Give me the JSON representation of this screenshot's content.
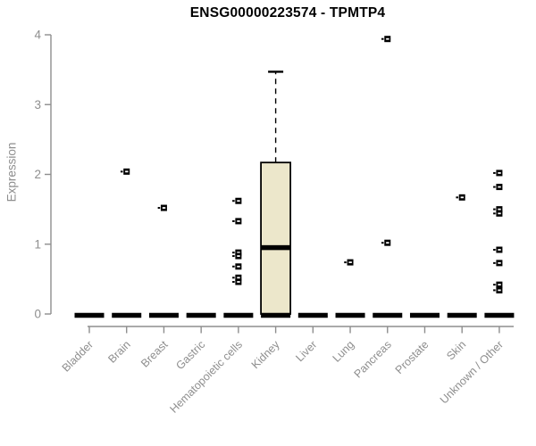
{
  "chart_data": {
    "type": "boxplot",
    "title": "ENSG00000223574 - TPMTP4",
    "ylabel": "Expression",
    "xlabel": "",
    "ylim": [
      0,
      4
    ],
    "yticks": [
      0,
      1,
      2,
      3,
      4
    ],
    "grid": false,
    "legend": "none",
    "series": [
      {
        "category": "Bladder",
        "median": 0,
        "q1": 0,
        "q3": 0,
        "whisker_low": 0,
        "whisker_high": 0,
        "outliers": []
      },
      {
        "category": "Brain",
        "median": 0,
        "q1": 0,
        "q3": 0,
        "whisker_low": 0,
        "whisker_high": 0,
        "outliers": [
          2.04
        ]
      },
      {
        "category": "Breast",
        "median": 0,
        "q1": 0,
        "q3": 0,
        "whisker_low": 0,
        "whisker_high": 0,
        "outliers": [
          1.52
        ]
      },
      {
        "category": "Gastric",
        "median": 0,
        "q1": 0,
        "q3": 0,
        "whisker_low": 0,
        "whisker_high": 0,
        "outliers": []
      },
      {
        "category": "Hematopoietic cells",
        "median": 0,
        "q1": 0,
        "q3": 0,
        "whisker_low": 0,
        "whisker_high": 0,
        "outliers": [
          1.62,
          1.33,
          0.88,
          0.83,
          0.68,
          0.52,
          0.46
        ]
      },
      {
        "category": "Kidney",
        "median": 0.97,
        "q1": 0,
        "q3": 2.17,
        "whisker_low": 0,
        "whisker_high": 3.47,
        "outliers": []
      },
      {
        "category": "Liver",
        "median": 0,
        "q1": 0,
        "q3": 0,
        "whisker_low": 0,
        "whisker_high": 0,
        "outliers": []
      },
      {
        "category": "Lung",
        "median": 0,
        "q1": 0,
        "q3": 0,
        "whisker_low": 0,
        "whisker_high": 0,
        "outliers": [
          0.74
        ]
      },
      {
        "category": "Pancreas",
        "median": 0,
        "q1": 0,
        "q3": 0,
        "whisker_low": 0,
        "whisker_high": 0,
        "outliers": [
          3.94,
          1.02
        ]
      },
      {
        "category": "Prostate",
        "median": 0,
        "q1": 0,
        "q3": 0,
        "whisker_low": 0,
        "whisker_high": 0,
        "outliers": []
      },
      {
        "category": "Skin",
        "median": 0,
        "q1": 0,
        "q3": 0,
        "whisker_low": 0,
        "whisker_high": 0,
        "outliers": [
          1.67
        ]
      },
      {
        "category": "Unknown / Other",
        "median": 0,
        "q1": 0,
        "q3": 0,
        "whisker_low": 0,
        "whisker_high": 0,
        "outliers": [
          2.02,
          1.82,
          1.5,
          1.44,
          0.92,
          0.73,
          0.42,
          0.34
        ]
      }
    ]
  },
  "colors": {
    "background": "#FFFFFF",
    "box_fill": "#ECE7CB",
    "box_stroke": "#000000",
    "median": "#000000",
    "outlier": "#000000",
    "axis": "#8E8E8E",
    "tick_label": "#8E8E8E",
    "title": "#000000"
  }
}
